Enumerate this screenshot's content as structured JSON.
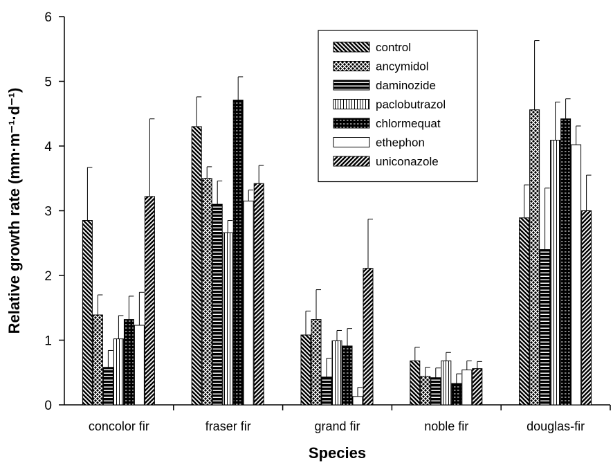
{
  "chart_data": {
    "type": "bar",
    "xlabel": "Species",
    "ylabel": "Relative growth rate (mm·m⁻¹·d⁻¹)",
    "ylim": [
      0,
      6
    ],
    "yticks": [
      "0",
      "1",
      "2",
      "3",
      "4",
      "5",
      "6"
    ],
    "grid": false,
    "legend_position": "top-right",
    "categories": [
      "concolor fir",
      "fraser fir",
      "grand fir",
      "noble fir",
      "douglas-fir"
    ],
    "series": [
      {
        "name": "control",
        "pattern": "diag-down",
        "values": [
          2.85,
          4.3,
          1.08,
          0.68,
          2.89
        ],
        "errors": [
          0.82,
          0.46,
          0.37,
          0.21,
          0.51
        ]
      },
      {
        "name": "ancymidol",
        "pattern": "crosshatch",
        "values": [
          1.39,
          3.5,
          1.32,
          0.44,
          4.56
        ],
        "errors": [
          0.31,
          0.18,
          0.46,
          0.14,
          1.07
        ]
      },
      {
        "name": "daminozide",
        "pattern": "horizontal",
        "values": [
          0.58,
          3.1,
          0.43,
          0.42,
          2.4
        ],
        "errors": [
          0.26,
          0.36,
          0.29,
          0.15,
          0.95
        ]
      },
      {
        "name": "paclobutrazol",
        "pattern": "vertical",
        "values": [
          1.02,
          2.66,
          0.99,
          0.68,
          4.09
        ],
        "errors": [
          0.36,
          0.19,
          0.16,
          0.13,
          0.59
        ]
      },
      {
        "name": "chlormequat",
        "pattern": "grid",
        "values": [
          1.32,
          4.71,
          0.91,
          0.33,
          4.42
        ],
        "errors": [
          0.36,
          0.36,
          0.27,
          0.15,
          0.31
        ]
      },
      {
        "name": "ethephon",
        "pattern": "empty",
        "values": [
          1.23,
          3.15,
          0.13,
          0.54,
          4.02
        ],
        "errors": [
          0.51,
          0.17,
          0.14,
          0.14,
          0.29
        ]
      },
      {
        "name": "uniconazole",
        "pattern": "diag-up",
        "values": [
          3.22,
          3.42,
          2.11,
          0.56,
          3.0
        ],
        "errors": [
          1.2,
          0.28,
          0.76,
          0.11,
          0.55
        ]
      }
    ]
  }
}
